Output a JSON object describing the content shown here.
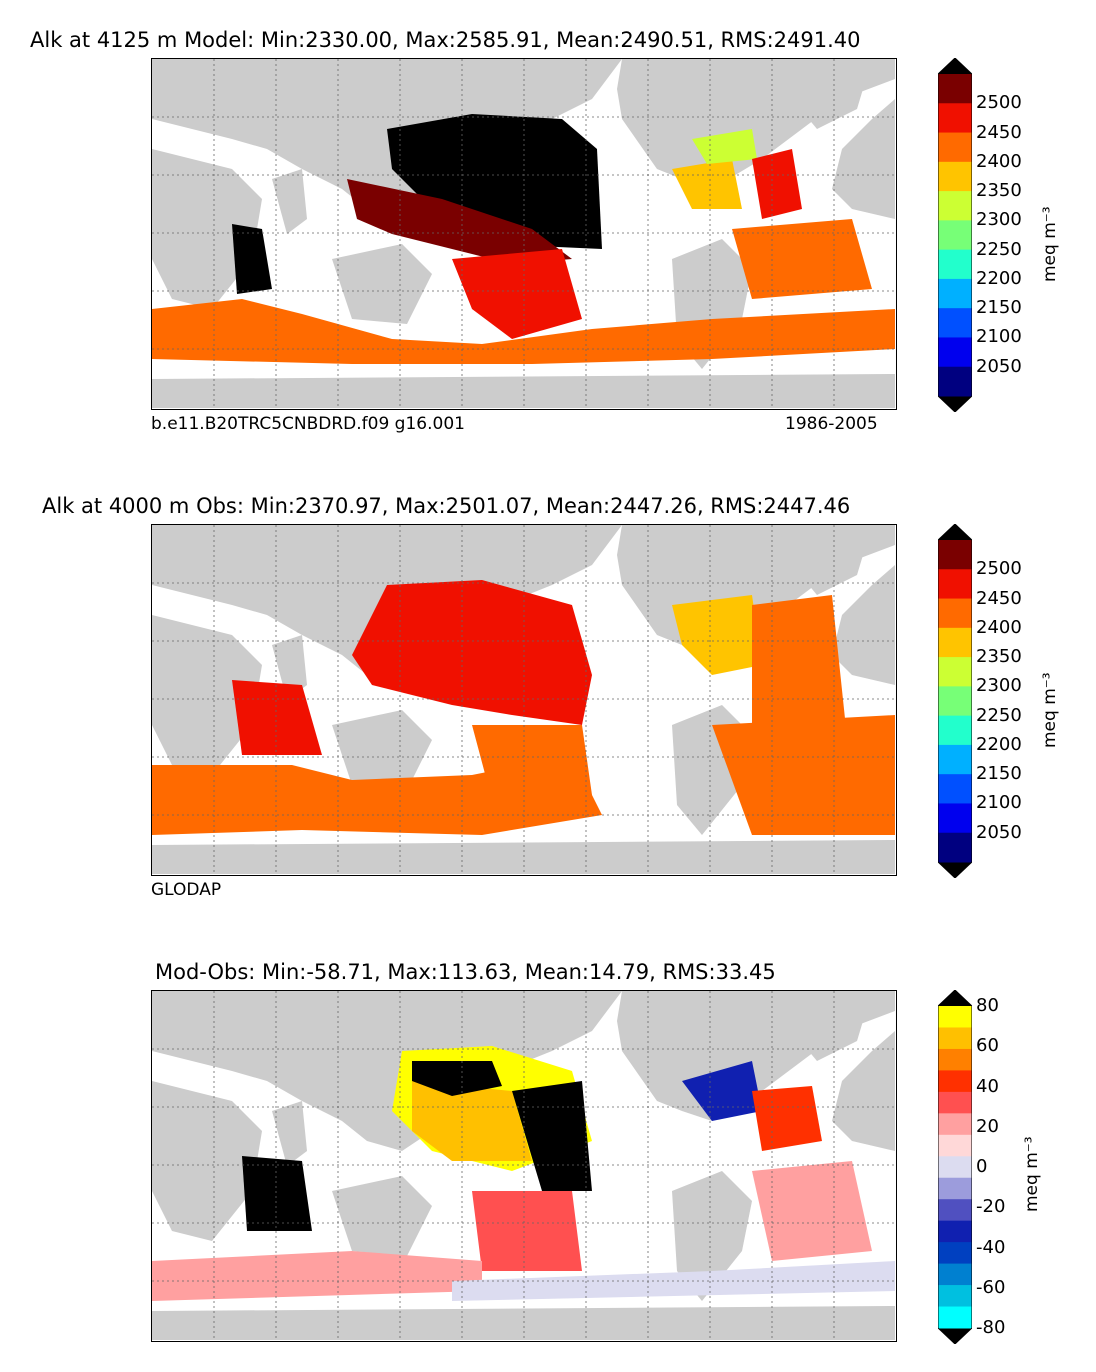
{
  "chart_data": [
    {
      "type": "heatmap",
      "title": "Alk at 4125 m Model: Min:2330.00, Max:2585.91, Mean:2490.51, RMS:2491.40",
      "left_caption": "b.e11.B20TRC5CNBDRD.f09 g16.001",
      "right_caption": "1986-2005",
      "colorbar": {
        "label": "meq m⁻³",
        "ticks": [
          "2500",
          "2450",
          "2400",
          "2350",
          "2300",
          "2250",
          "2200",
          "2150",
          "2100",
          "2050"
        ],
        "colors": [
          "#7a0000",
          "#f01000",
          "#ff6a00",
          "#ffc400",
          "#ccff33",
          "#77ff77",
          "#22ffcc",
          "#00b0ff",
          "#0050ff",
          "#0000ee",
          "#000080"
        ]
      }
    },
    {
      "type": "heatmap",
      "title": "Alk at 4000 m Obs: Min:2370.97, Max:2501.07, Mean:2447.26, RMS:2447.46",
      "left_caption": "GLODAP",
      "colorbar": {
        "label": "meq m⁻³",
        "ticks": [
          "2500",
          "2450",
          "2400",
          "2350",
          "2300",
          "2250",
          "2200",
          "2150",
          "2100",
          "2050"
        ],
        "colors": [
          "#7a0000",
          "#f01000",
          "#ff6a00",
          "#ffc400",
          "#ccff33",
          "#77ff77",
          "#22ffcc",
          "#00b0ff",
          "#0050ff",
          "#0000ee",
          "#000080"
        ]
      }
    },
    {
      "type": "heatmap",
      "title": "Mod-Obs: Min:-58.71, Max:113.63, Mean:14.79, RMS:33.45",
      "colorbar": {
        "label": "meq m⁻³",
        "ticks": [
          "80",
          "60",
          "40",
          "20",
          "0",
          "-20",
          "-40",
          "-60",
          "-80"
        ],
        "colors": [
          "#ffff00",
          "#ffc000",
          "#ff8000",
          "#ff3000",
          "#ff5050",
          "#ffa0a0",
          "#ffd8d8",
          "#dcdcf0",
          "#9c9cdc",
          "#5050c0",
          "#1020b0",
          "#0040c0",
          "#0080d0",
          "#00c0e0",
          "#00ffff"
        ]
      }
    }
  ],
  "colors": {
    "land": "#cccccc",
    "ocean_blank": "#ffffff",
    "over": "#000000"
  }
}
